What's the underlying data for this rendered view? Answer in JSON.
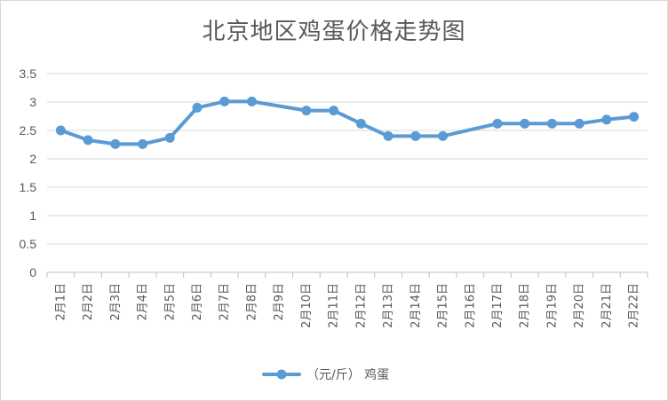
{
  "chart_data": {
    "type": "line",
    "title": "北京地区鸡蛋价格走势图",
    "categories": [
      "2月1日",
      "2月2日",
      "2月3日",
      "2月4日",
      "2月5日",
      "2月6日",
      "2月7日",
      "2月8日",
      "2月9日",
      "2月10日",
      "2月11日",
      "2月12日",
      "2月13日",
      "2月14日",
      "2月15日",
      "2月16日",
      "2月17日",
      "2月18日",
      "2月19日",
      "2月20日",
      "2月21日",
      "2月22日"
    ],
    "series": [
      {
        "name": "（元/斤） 鸡蛋",
        "color": "#5b9bd5",
        "values": [
          2.5,
          2.33,
          2.26,
          2.26,
          2.37,
          2.9,
          3.01,
          3.01,
          null,
          2.85,
          2.85,
          2.62,
          2.4,
          2.4,
          2.4,
          null,
          2.62,
          2.62,
          2.62,
          2.62,
          2.69,
          2.74
        ]
      }
    ],
    "yticks": [
      "0",
      "0.5",
      "1",
      "1.5",
      "2",
      "2.5",
      "3",
      "3.5"
    ],
    "ylim": [
      0,
      3.5
    ],
    "grid": true,
    "legend_position": "bottom"
  }
}
